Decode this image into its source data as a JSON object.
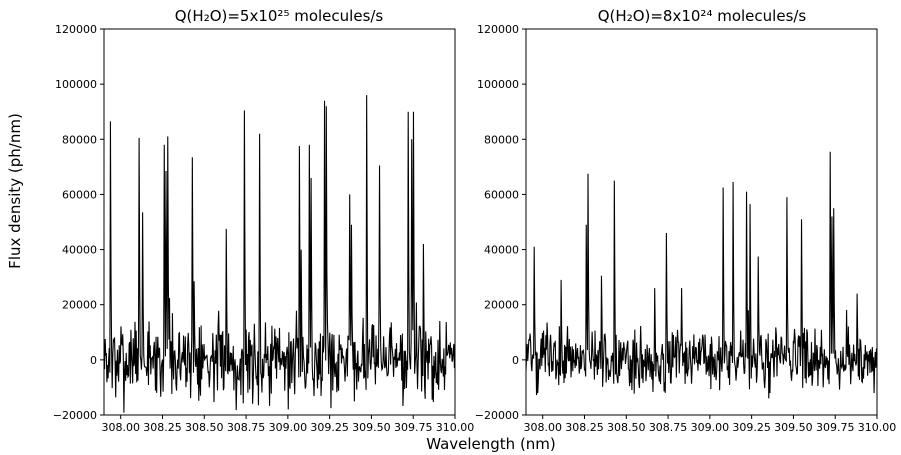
{
  "figure": {
    "ylabel": "Flux density (ph/nm)",
    "xlabel": "Wavelength (nm)"
  },
  "chart_data": [
    {
      "type": "line",
      "title": "Q(H₂O)=5x10²⁵ molecules/s",
      "xlabel": "Wavelength (nm)",
      "ylabel": "Flux density (ph/nm)",
      "xlim": [
        307.9,
        310.0
      ],
      "ylim": [
        -20000,
        120000
      ],
      "xticks": [
        308.0,
        308.25,
        308.5,
        308.75,
        309.0,
        309.25,
        309.5,
        309.75,
        310.0
      ],
      "xtick_labels": [
        "308.00",
        "308.25",
        "308.50",
        "308.75",
        "309.00",
        "309.25",
        "309.50",
        "309.75",
        "310.00"
      ],
      "yticks": [
        -20000,
        0,
        20000,
        40000,
        60000,
        80000,
        100000,
        120000
      ],
      "ytick_labels": [
        "−20000",
        "0",
        "20000",
        "40000",
        "60000",
        "80000",
        "100000",
        "120000"
      ],
      "grid": false,
      "color": "#000000",
      "noise_amplitude": 12000,
      "baseline": 0,
      "sample_step": 0.0035,
      "peaks": [
        {
          "x": 307.94,
          "y": 86500
        },
        {
          "x": 308.11,
          "y": 80500
        },
        {
          "x": 308.13,
          "y": 53500
        },
        {
          "x": 308.26,
          "y": 78000
        },
        {
          "x": 308.27,
          "y": 68500
        },
        {
          "x": 308.28,
          "y": 81000
        },
        {
          "x": 308.43,
          "y": 73500
        },
        {
          "x": 308.44,
          "y": 28500
        },
        {
          "x": 308.63,
          "y": 47500
        },
        {
          "x": 308.74,
          "y": 90500
        },
        {
          "x": 308.83,
          "y": 82000
        },
        {
          "x": 309.07,
          "y": 77500
        },
        {
          "x": 309.08,
          "y": 40000
        },
        {
          "x": 309.13,
          "y": 78000
        },
        {
          "x": 309.14,
          "y": 66000
        },
        {
          "x": 309.22,
          "y": 94000
        },
        {
          "x": 309.23,
          "y": 92000
        },
        {
          "x": 309.37,
          "y": 60000
        },
        {
          "x": 309.38,
          "y": 49000
        },
        {
          "x": 309.47,
          "y": 96000
        },
        {
          "x": 309.55,
          "y": 70500
        },
        {
          "x": 309.72,
          "y": 90000
        },
        {
          "x": 309.75,
          "y": 90000
        },
        {
          "x": 309.74,
          "y": 80000
        },
        {
          "x": 309.81,
          "y": 42000
        }
      ]
    },
    {
      "type": "line",
      "title": "Q(H₂O)=8x10²⁴ molecules/s",
      "xlabel": "Wavelength (nm)",
      "ylabel": "Flux density (ph/nm)",
      "xlim": [
        307.9,
        310.0
      ],
      "ylim": [
        -20000,
        120000
      ],
      "xticks": [
        308.0,
        308.25,
        308.5,
        308.75,
        309.0,
        309.25,
        309.5,
        309.75,
        310.0
      ],
      "xtick_labels": [
        "308.00",
        "308.25",
        "308.50",
        "308.75",
        "309.00",
        "309.25",
        "309.50",
        "309.75",
        "310.00"
      ],
      "yticks": [
        -20000,
        0,
        20000,
        40000,
        60000,
        80000,
        100000,
        120000
      ],
      "ytick_labels": [
        "−20000",
        "0",
        "20000",
        "40000",
        "60000",
        "80000",
        "100000",
        "120000"
      ],
      "grid": false,
      "color": "#000000",
      "noise_amplitude": 9000,
      "baseline": 0,
      "sample_step": 0.0035,
      "peaks": [
        {
          "x": 307.95,
          "y": 41000
        },
        {
          "x": 308.11,
          "y": 29000
        },
        {
          "x": 308.26,
          "y": 49000
        },
        {
          "x": 308.27,
          "y": 67500
        },
        {
          "x": 308.35,
          "y": 30500
        },
        {
          "x": 308.43,
          "y": 65000
        },
        {
          "x": 308.67,
          "y": 26000
        },
        {
          "x": 308.74,
          "y": 46000
        },
        {
          "x": 308.83,
          "y": 26000
        },
        {
          "x": 309.08,
          "y": 62500
        },
        {
          "x": 309.14,
          "y": 64500
        },
        {
          "x": 309.22,
          "y": 61000
        },
        {
          "x": 309.24,
          "y": 56500
        },
        {
          "x": 309.29,
          "y": 37500
        },
        {
          "x": 309.46,
          "y": 59000
        },
        {
          "x": 309.55,
          "y": 51000
        },
        {
          "x": 309.72,
          "y": 75500
        },
        {
          "x": 309.73,
          "y": 52000
        },
        {
          "x": 309.74,
          "y": 55000
        },
        {
          "x": 309.88,
          "y": 24000
        }
      ]
    }
  ]
}
